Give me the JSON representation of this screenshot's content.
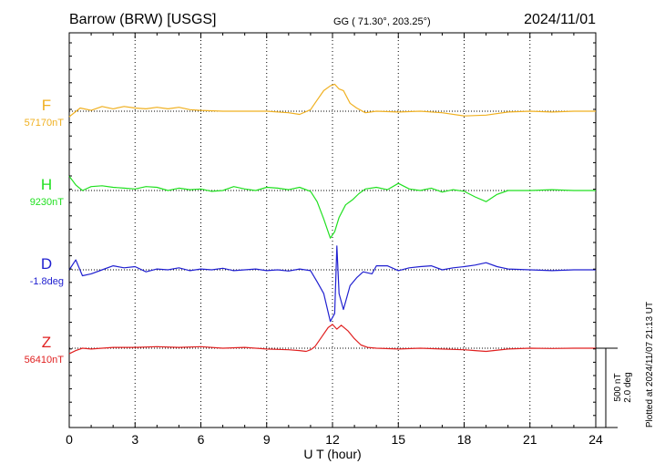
{
  "header": {
    "station": "Barrow (BRW)  [USGS]",
    "coords": "GG ( 71.30°, 203.25°)",
    "date": "2024/11/01"
  },
  "footer": {
    "plotted": "Plotted at 2024/11/07 21:13 UT"
  },
  "scale_bar": {
    "line1": "500 nT",
    "line2": "2.0 deg"
  },
  "chart_data": {
    "type": "line",
    "title": "Barrow (BRW)  [USGS]",
    "xlabel": "U T (hour)",
    "xlim": [
      0,
      24
    ],
    "x_ticks": [
      "0",
      "3",
      "6",
      "9",
      "12",
      "15",
      "18",
      "21",
      "24"
    ],
    "grid": "dotted vertical lines every 3 hours",
    "series": [
      {
        "name": "F",
        "baseline_label": "57170nT",
        "unit": "nT",
        "color": "#f0b020",
        "baseline": 57170,
        "x": [
          0,
          0.5,
          1,
          1.5,
          2,
          2.5,
          3,
          3.5,
          4,
          4.5,
          5,
          5.5,
          6,
          7,
          8,
          9,
          10,
          10.5,
          11,
          11.3,
          11.6,
          11.9,
          12.1,
          12.3,
          12.5,
          12.8,
          13.1,
          13.5,
          14,
          15,
          16,
          17,
          18,
          19,
          20,
          21,
          22,
          23,
          24
        ],
        "values": [
          57135,
          57190,
          57175,
          57200,
          57185,
          57200,
          57190,
          57185,
          57195,
          57185,
          57195,
          57180,
          57175,
          57170,
          57170,
          57170,
          57160,
          57150,
          57180,
          57240,
          57300,
          57330,
          57340,
          57310,
          57300,
          57220,
          57190,
          57160,
          57170,
          57165,
          57170,
          57160,
          57140,
          57145,
          57165,
          57170,
          57165,
          57170,
          57170
        ]
      },
      {
        "name": "H",
        "baseline_label": "9230nT",
        "unit": "nT",
        "color": "#20e020",
        "baseline": 9230,
        "x": [
          0,
          0.3,
          0.6,
          1,
          1.5,
          2,
          2.5,
          3,
          3.5,
          4,
          4.5,
          5,
          5.5,
          6,
          6.5,
          7,
          7.5,
          8,
          8.5,
          9,
          9.5,
          10,
          10.5,
          11,
          11.3,
          11.6,
          11.9,
          12.1,
          12.3,
          12.6,
          12.9,
          13.2,
          13.5,
          14,
          14.5,
          15,
          15.5,
          16,
          16.5,
          17,
          17.5,
          18,
          18.5,
          19,
          19.5,
          20,
          21,
          22,
          23,
          24
        ],
        "values": [
          9320,
          9265,
          9230,
          9255,
          9260,
          9250,
          9245,
          9240,
          9255,
          9250,
          9230,
          9245,
          9235,
          9240,
          9225,
          9230,
          9255,
          9240,
          9230,
          9250,
          9245,
          9235,
          9250,
          9225,
          9160,
          9050,
          8930,
          8970,
          9060,
          9140,
          9170,
          9210,
          9240,
          9250,
          9235,
          9275,
          9240,
          9230,
          9245,
          9220,
          9235,
          9225,
          9190,
          9160,
          9205,
          9230,
          9230,
          9235,
          9230,
          9230
        ]
      },
      {
        "name": "D",
        "baseline_label": "-1.8deg",
        "unit": "deg",
        "color": "#2020d0",
        "baseline": -1.8,
        "x": [
          0,
          0.3,
          0.6,
          1,
          1.5,
          2,
          2.5,
          3,
          3.5,
          4,
          4.5,
          5,
          5.5,
          6,
          6.5,
          7,
          7.5,
          8,
          8.5,
          9,
          9.5,
          10,
          10.5,
          11,
          11.3,
          11.6,
          11.9,
          12.1,
          12.2,
          12.3,
          12.5,
          12.8,
          13.1,
          13.4,
          13.8,
          14,
          14.5,
          15,
          15.5,
          16,
          16.5,
          17,
          17.5,
          18,
          18.5,
          19,
          19.5,
          20,
          21,
          22,
          23,
          24
        ],
        "values": [
          -1.8,
          -1.55,
          -1.95,
          -1.9,
          -1.8,
          -1.7,
          -1.75,
          -1.72,
          -1.85,
          -1.78,
          -1.8,
          -1.75,
          -1.82,
          -1.78,
          -1.8,
          -1.76,
          -1.82,
          -1.8,
          -1.78,
          -1.82,
          -1.8,
          -1.83,
          -1.78,
          -1.82,
          -2.1,
          -2.4,
          -3.1,
          -2.9,
          -1.2,
          -2.4,
          -2.8,
          -2.2,
          -2.0,
          -1.85,
          -1.9,
          -1.7,
          -1.7,
          -1.82,
          -1.75,
          -1.72,
          -1.7,
          -1.8,
          -1.75,
          -1.72,
          -1.68,
          -1.62,
          -1.72,
          -1.78,
          -1.8,
          -1.82,
          -1.8,
          -1.8
        ]
      },
      {
        "name": "Z",
        "baseline_label": "56410nT",
        "unit": "nT",
        "color": "#e02020",
        "baseline": 56410,
        "x": [
          0,
          0.3,
          0.6,
          1,
          1.5,
          2,
          3,
          4,
          5,
          6,
          7,
          8,
          9,
          10,
          10.5,
          10.8,
          11,
          11.2,
          11.5,
          11.8,
          12,
          12.2,
          12.4,
          12.7,
          13,
          13.3,
          13.6,
          14,
          15,
          16,
          17,
          18,
          18.5,
          19,
          20,
          21,
          22,
          23,
          24
        ],
        "values": [
          56375,
          56395,
          56410,
          56405,
          56410,
          56415,
          56415,
          56420,
          56415,
          56420,
          56410,
          56415,
          56405,
          56400,
          56395,
          56390,
          56400,
          56420,
          56480,
          56540,
          56560,
          56530,
          56555,
          56520,
          56470,
          56430,
          56415,
          56410,
          56405,
          56410,
          56405,
          56400,
          56395,
          56390,
          56405,
          56410,
          56408,
          56410,
          56410
        ]
      }
    ]
  }
}
